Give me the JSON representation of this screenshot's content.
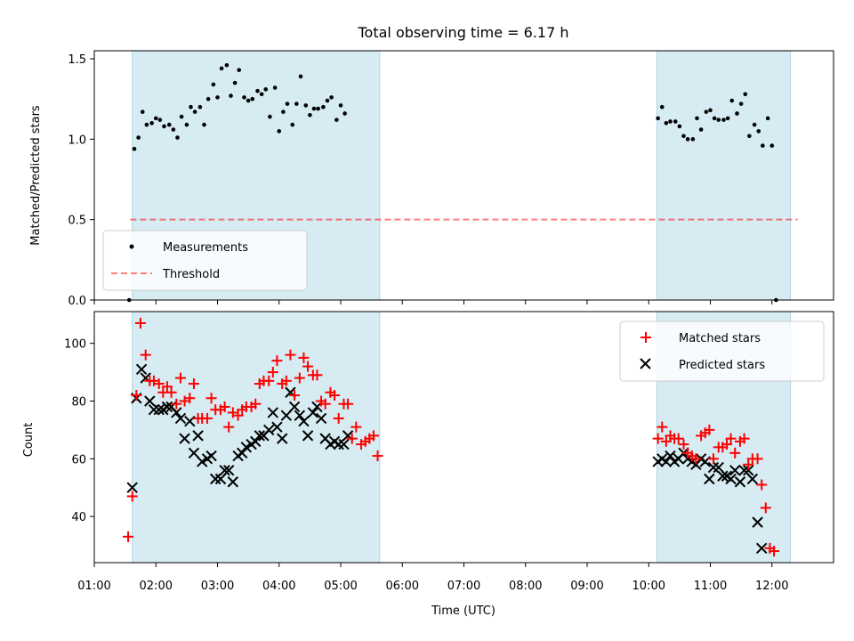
{
  "figure": {
    "title": "Total observing time = 6.17 h"
  },
  "colors": {
    "observing_band": "#add8e6",
    "measurement": "#000000",
    "threshold": "#ff0000",
    "matched": "#ff0000",
    "predicted": "#000000"
  },
  "chart_data": [
    {
      "type": "scatter",
      "panel": "top",
      "title": "Total observing time = 6.17 h",
      "xlabel": "",
      "ylabel": "Matched/Predicted stars",
      "xlim": [
        "01:00",
        "13:00"
      ],
      "ylim": [
        0,
        1.55
      ],
      "yticks": [
        "0.0",
        "0.5",
        "1.0",
        "1.5"
      ],
      "legend_placement": "lower-left",
      "observing_windows": [
        {
          "start": "01:37",
          "end": "05:38"
        },
        {
          "start": "10:08",
          "end": "12:18"
        }
      ],
      "threshold": {
        "name": "Threshold",
        "value": 0.5,
        "x_range": [
          "01:35",
          "12:25"
        ]
      },
      "series": [
        {
          "name": "Measurements",
          "x": [
            "01:34",
            "01:39",
            "01:43",
            "01:47",
            "01:51",
            "01:56",
            "02:00",
            "02:04",
            "02:08",
            "02:13",
            "02:17",
            "02:21",
            "02:25",
            "02:30",
            "02:34",
            "02:38",
            "02:43",
            "02:47",
            "02:51",
            "02:56",
            "03:00",
            "03:04",
            "03:09",
            "03:13",
            "03:17",
            "03:21",
            "03:26",
            "03:30",
            "03:34",
            "03:39",
            "03:43",
            "03:47",
            "03:51",
            "03:56",
            "04:00",
            "04:04",
            "04:08",
            "04:13",
            "04:17",
            "04:21",
            "04:26",
            "04:30",
            "04:34",
            "04:38",
            "04:43",
            "04:47",
            "04:51",
            "04:56",
            "05:00",
            "05:04",
            "05:09",
            "05:13",
            "05:17",
            "05:21",
            "05:26",
            "05:30",
            "05:34",
            "10:09",
            "10:13",
            "10:17",
            "10:21",
            "10:26",
            "10:30",
            "10:34",
            "10:38",
            "10:43",
            "10:47",
            "10:51",
            "10:56",
            "11:00",
            "11:04",
            "11:08",
            "11:13",
            "11:17",
            "11:21",
            "11:26",
            "11:30",
            "11:34",
            "11:38",
            "11:43",
            "11:47",
            "11:51",
            "11:56",
            "12:00",
            "12:04",
            "12:08",
            "12:13",
            "12:17",
            "12:21",
            "12:25"
          ],
          "y": [
            0.0,
            0.94,
            1.01,
            1.17,
            1.09,
            1.1,
            1.13,
            1.12,
            1.08,
            1.09,
            1.06,
            1.01,
            1.14,
            1.09,
            1.2,
            1.17,
            1.2,
            1.09,
            1.25,
            1.34,
            1.26,
            1.44,
            1.46,
            1.27,
            1.35,
            1.43,
            1.26,
            1.24,
            1.25,
            1.3,
            1.28,
            1.31,
            1.14,
            1.32,
            1.05,
            1.17,
            1.22,
            1.09,
            1.22,
            1.39,
            1.21,
            1.15,
            1.19,
            1.19,
            1.2,
            1.24,
            1.26,
            1.12,
            1.21,
            1.16,
            null,
            null,
            null,
            null,
            null,
            null,
            null,
            1.13,
            1.2,
            1.1,
            1.11,
            1.11,
            1.08,
            1.02,
            1.0,
            1.0,
            1.13,
            1.06,
            1.17,
            1.18,
            1.13,
            1.12,
            1.12,
            1.13,
            1.24,
            1.16,
            1.22,
            1.28,
            1.02,
            1.09,
            1.05,
            0.96,
            1.13,
            0.96,
            0.0,
            null,
            null,
            null,
            null,
            null
          ]
        }
      ]
    },
    {
      "type": "scatter",
      "panel": "bottom",
      "xlabel": "Time (UTC)",
      "ylabel": "Count",
      "xlim": [
        "01:00",
        "13:00"
      ],
      "xticks": [
        "01:00",
        "02:00",
        "03:00",
        "04:00",
        "05:00",
        "06:00",
        "07:00",
        "08:00",
        "09:00",
        "10:00",
        "11:00",
        "12:00"
      ],
      "ylim": [
        24,
        111
      ],
      "yticks": [
        "40",
        "60",
        "80",
        "100"
      ],
      "legend_placement": "top-right",
      "observing_windows": [
        {
          "start": "01:37",
          "end": "05:38"
        },
        {
          "start": "10:08",
          "end": "12:18"
        }
      ],
      "series": [
        {
          "name": "Matched stars",
          "marker": "plus",
          "x": [
            "01:33",
            "01:37",
            "01:41",
            "01:45",
            "01:50",
            "01:54",
            "01:58",
            "02:03",
            "02:07",
            "02:11",
            "02:15",
            "02:20",
            "02:24",
            "02:28",
            "02:33",
            "02:37",
            "02:41",
            "02:45",
            "02:50",
            "02:54",
            "02:58",
            "03:03",
            "03:07",
            "03:11",
            "03:15",
            "03:20",
            "03:24",
            "03:28",
            "03:33",
            "03:37",
            "03:41",
            "03:45",
            "03:50",
            "03:54",
            "03:58",
            "04:03",
            "04:07",
            "04:11",
            "04:15",
            "04:20",
            "04:24",
            "04:28",
            "04:33",
            "04:37",
            "04:41",
            "04:45",
            "04:50",
            "04:54",
            "04:58",
            "05:03",
            "05:07",
            "05:11",
            "05:15",
            "05:20",
            "05:24",
            "05:28",
            "05:32",
            "05:36",
            "10:09",
            "10:13",
            "10:17",
            "10:21",
            "10:25",
            "10:29",
            "10:34",
            "10:38",
            "10:42",
            "10:46",
            "10:51",
            "10:55",
            "10:59",
            "11:03",
            "11:08",
            "11:12",
            "11:16",
            "11:20",
            "11:24",
            "11:29",
            "11:33",
            "11:37",
            "11:41",
            "11:46",
            "11:50",
            "11:54",
            "11:58",
            "12:02",
            "12:07",
            "12:11",
            "12:15",
            "12:19",
            "12:23",
            "12:28"
          ],
          "y": [
            33,
            47,
            82,
            107,
            96,
            87,
            87,
            86,
            83,
            85,
            83,
            79,
            88,
            80,
            81,
            86,
            74,
            74,
            74,
            81,
            77,
            77,
            78,
            71,
            76,
            75,
            77,
            78,
            78,
            79,
            86,
            87,
            87,
            90,
            94,
            86,
            87,
            96,
            82,
            88,
            95,
            92,
            89,
            89,
            80,
            79,
            83,
            82,
            74,
            79,
            79,
            67,
            71,
            65,
            66,
            67,
            68,
            61,
            67,
            71,
            66,
            68,
            67,
            67,
            65,
            62,
            61,
            60,
            68,
            69,
            70,
            60,
            64,
            64,
            65,
            67,
            62,
            66,
            67,
            58,
            60,
            60,
            51,
            43,
            29,
            28,
            null,
            null,
            null,
            null,
            null,
            null
          ],
          "color": "#ff0000"
        },
        {
          "name": "Predicted stars",
          "marker": "x",
          "x": [
            "01:37",
            "01:41",
            "01:46",
            "01:50",
            "01:54",
            "01:58",
            "02:03",
            "02:07",
            "02:11",
            "02:15",
            "02:20",
            "02:24",
            "02:28",
            "02:33",
            "02:37",
            "02:41",
            "02:45",
            "02:50",
            "02:54",
            "02:58",
            "03:03",
            "03:07",
            "03:11",
            "03:15",
            "03:20",
            "03:24",
            "03:28",
            "03:33",
            "03:37",
            "03:41",
            "03:45",
            "03:50",
            "03:54",
            "03:58",
            "04:03",
            "04:07",
            "04:11",
            "04:15",
            "04:20",
            "04:24",
            "04:28",
            "04:33",
            "04:37",
            "04:41",
            "04:45",
            "04:50",
            "04:54",
            "04:58",
            "05:03",
            "05:07",
            "05:11",
            "05:15",
            "05:20",
            "05:24",
            "05:28",
            "05:32",
            "10:09",
            "10:13",
            "10:17",
            "10:21",
            "10:25",
            "10:29",
            "10:34",
            "10:38",
            "10:42",
            "10:46",
            "10:51",
            "10:55",
            "10:59",
            "11:03",
            "11:08",
            "11:12",
            "11:16",
            "11:20",
            "11:24",
            "11:29",
            "11:33",
            "11:37",
            "11:41",
            "11:46",
            "11:50",
            "11:54",
            "11:58",
            "12:02",
            "12:07",
            "12:11",
            "12:15",
            "12:19",
            "12:23"
          ],
          "y": [
            50,
            81,
            91,
            88,
            80,
            77,
            77,
            77,
            78,
            78,
            76,
            74,
            67,
            73,
            62,
            68,
            59,
            60,
            61,
            53,
            53,
            56,
            56,
            52,
            61,
            62,
            64,
            65,
            66,
            68,
            68,
            70,
            76,
            71,
            67,
            75,
            83,
            78,
            75,
            73,
            68,
            76,
            78,
            74,
            67,
            65,
            66,
            65,
            65,
            68,
            null,
            null,
            null,
            null,
            null,
            null,
            59,
            60,
            59,
            61,
            59,
            60,
            62,
            60,
            59,
            58,
            60,
            59,
            53,
            57,
            57,
            54,
            54,
            53,
            56,
            52,
            56,
            56,
            53,
            38,
            29,
            null,
            null,
            null,
            null,
            null,
            null,
            null,
            null
          ],
          "color": "#000000"
        }
      ]
    }
  ]
}
